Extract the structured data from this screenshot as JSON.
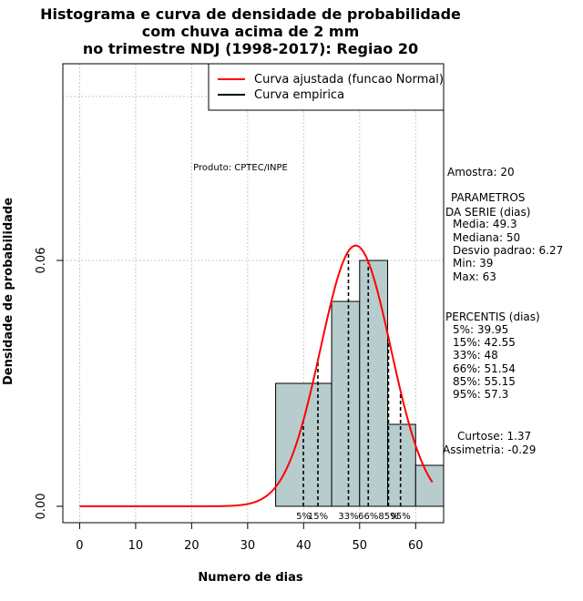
{
  "chart_data": {
    "type": "bar",
    "title_lines": [
      "Histograma e curva de densidade de probabilidade",
      "com chuva acima de 2 mm",
      "no trimestre NDJ (1998-2017): Regiao 20"
    ],
    "xlabel": "Numero de dias",
    "ylabel": "Densidade de probabilidade",
    "xlim": [
      -3,
      65
    ],
    "ylim": [
      -0.004,
      0.108
    ],
    "x_ticks": [
      0,
      10,
      20,
      30,
      40,
      50,
      60
    ],
    "y_ticks": [
      0.0,
      0.06
    ],
    "y_tick_labels": [
      "0.00",
      "0.06"
    ],
    "grid_x": [
      0,
      10,
      20,
      30,
      40,
      50,
      60
    ],
    "grid_y": [
      0.06,
      0.1
    ],
    "bins": [
      {
        "x0": 35,
        "x1": 45,
        "density": 0.03
      },
      {
        "x0": 45,
        "x1": 50,
        "density": 0.05
      },
      {
        "x0": 50,
        "x1": 55,
        "density": 0.06
      },
      {
        "x0": 55,
        "x1": 60,
        "density": 0.02
      },
      {
        "x0": 60,
        "x1": 65,
        "density": 0.01
      }
    ],
    "normal_fit": {
      "mean": 49.3,
      "sd": 6.27,
      "x_from": 0,
      "x_to": 63
    },
    "percentile_lines": [
      {
        "label": "5%",
        "x": 39.95
      },
      {
        "label": "15%",
        "x": 42.55
      },
      {
        "label": "33%",
        "x": 48
      },
      {
        "label": "66%",
        "x": 51.54
      },
      {
        "label": "85%",
        "x": 55.15
      },
      {
        "label": "95%",
        "x": 57.3
      }
    ],
    "colors": {
      "bar_fill": "#b7cccc",
      "curve": "#ff0000",
      "grid": "#c8c8c8"
    },
    "legend": [
      {
        "label": "Curva ajustada (funcao Normal)",
        "color": "#ff0000"
      },
      {
        "label": "Curva empirica",
        "color": "#000000"
      }
    ],
    "credit": "Produto: CPTEC/INPE"
  },
  "stats": {
    "amostra": "Amostra: 20",
    "param_title_1": "PARAMETROS",
    "param_title_2": "DA SERIE (dias)",
    "media": "Media: 49.3",
    "mediana": "Mediana: 50",
    "desvio": "Desvio padrao: 6.27",
    "min": "Min: 39",
    "max": "Max: 63",
    "percentis_title": "PERCENTIS (dias)",
    "p5": "5%: 39.95",
    "p15": "15%: 42.55",
    "p33": "33%: 48",
    "p66": "66%: 51.54",
    "p85": "85%: 55.15",
    "p95": "95%: 57.3",
    "curtose": "Curtose: 1.37",
    "assimetria": "Assimetria: -0.29"
  }
}
